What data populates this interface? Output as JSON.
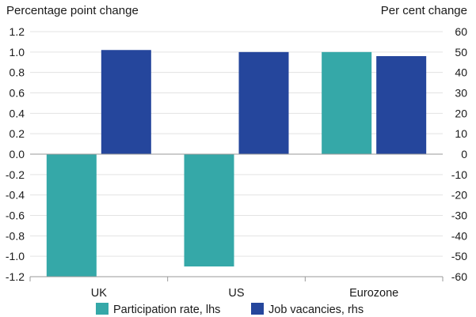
{
  "chart_data": {
    "type": "bar",
    "left_axis_title": "Percentage point change",
    "right_axis_title": "Per cent change",
    "categories": [
      "UK",
      "US",
      "Eurozone"
    ],
    "left_axis": {
      "ylim": [
        -1.2,
        1.2
      ],
      "ticks": [
        "1.2",
        "1.0",
        "0.8",
        "0.6",
        "0.4",
        "0.2",
        "0.0",
        "-0.2",
        "-0.4",
        "-0.6",
        "-0.8",
        "-1.0",
        "-1.2"
      ],
      "tick_values": [
        1.2,
        1.0,
        0.8,
        0.6,
        0.4,
        0.2,
        0.0,
        -0.2,
        -0.4,
        -0.6,
        -0.8,
        -1.0,
        -1.2
      ]
    },
    "right_axis": {
      "ylim": [
        -60,
        60
      ],
      "ticks": [
        "60",
        "50",
        "40",
        "30",
        "20",
        "10",
        "0",
        "-10",
        "-20",
        "-30",
        "-40",
        "-50",
        "-60"
      ],
      "tick_values": [
        60,
        50,
        40,
        30,
        20,
        10,
        0,
        -10,
        -20,
        -30,
        -40,
        -50,
        -60
      ]
    },
    "series": [
      {
        "name": "Participation rate, lhs",
        "axis": "left",
        "color": "#35a8a8",
        "values": [
          -1.2,
          -1.1,
          1.0
        ]
      },
      {
        "name": "Job vacancies, rhs",
        "axis": "right",
        "color": "#25469c",
        "values": [
          51,
          50,
          48
        ]
      }
    ],
    "grid": true,
    "legend_position": "bottom"
  }
}
